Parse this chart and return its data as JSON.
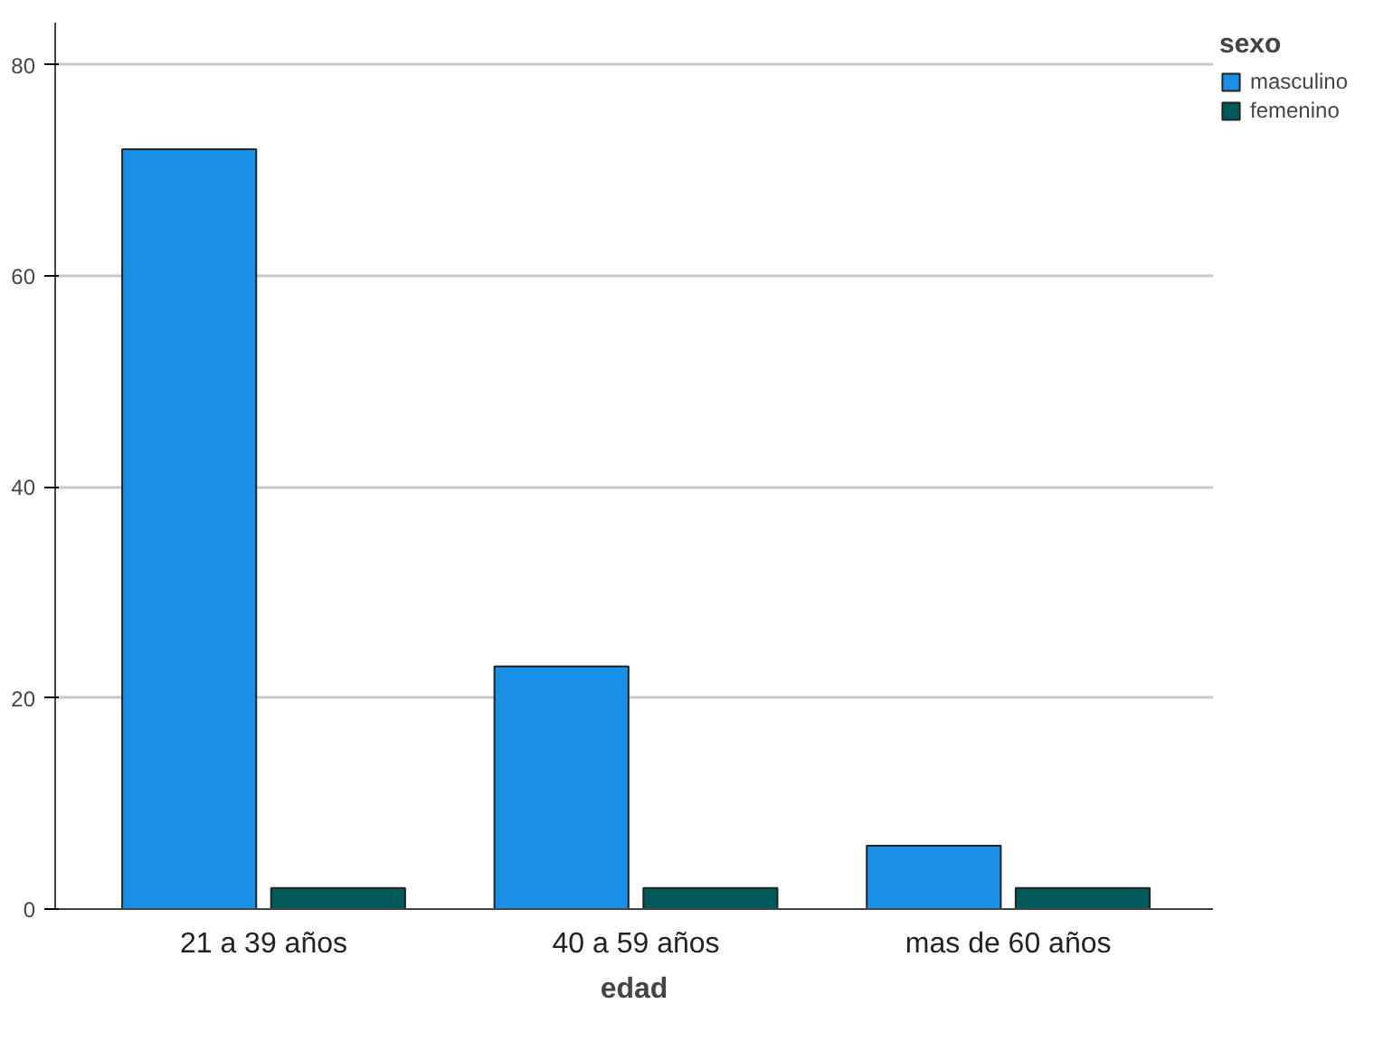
{
  "chart_data": {
    "type": "bar",
    "xlabel": "edad",
    "legend_title": "sexo",
    "categories": [
      "21 a 39 años",
      "40 a 59 años",
      "mas de 60 años"
    ],
    "series": [
      {
        "name": "masculino",
        "color": "#1a8fe6",
        "values": [
          72,
          23,
          6
        ]
      },
      {
        "name": "femenino",
        "color": "#005a5a",
        "values": [
          2,
          2,
          2
        ]
      }
    ],
    "ylim": [
      0,
      84
    ],
    "yticks": [
      0,
      20,
      40,
      60,
      80
    ],
    "grid": "y",
    "legend": "top right"
  }
}
